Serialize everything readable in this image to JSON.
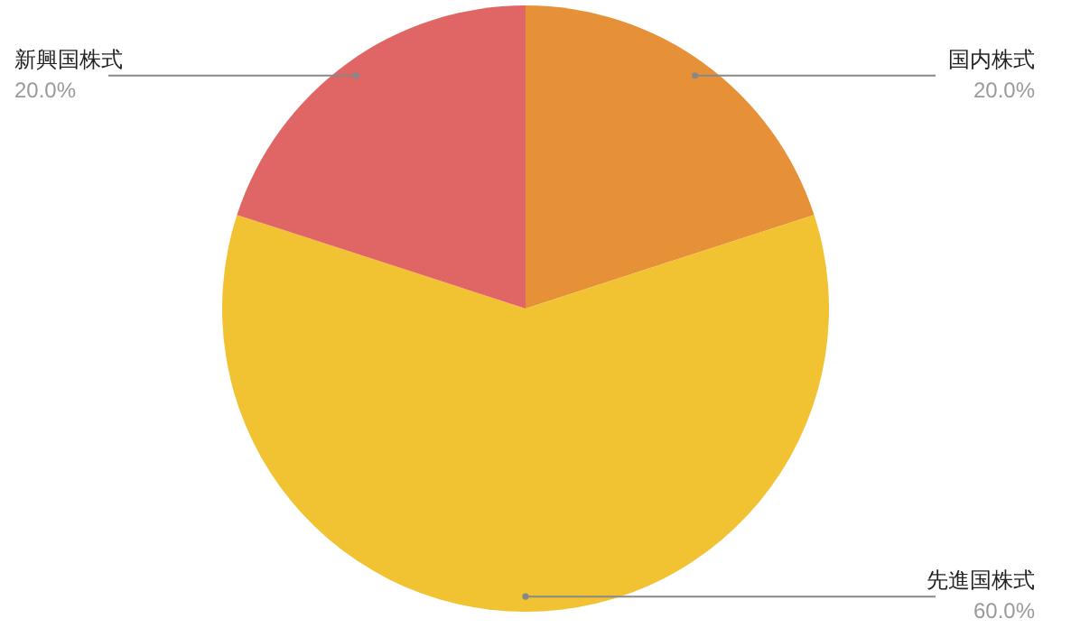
{
  "chart_data": {
    "type": "pie",
    "categories": [
      "国内株式",
      "先進国株式",
      "新興国株式"
    ],
    "values": [
      20,
      60,
      20
    ],
    "colors": [
      "#e69138",
      "#f1c232",
      "#e06666"
    ],
    "value_labels": [
      "20.0%",
      "60.0%",
      "20.0%"
    ]
  }
}
